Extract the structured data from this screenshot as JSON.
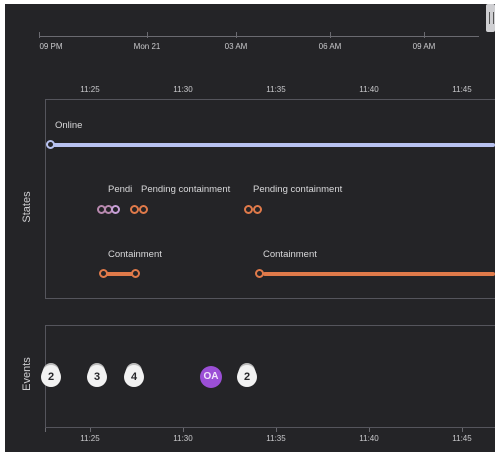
{
  "overview_axis": {
    "labels": [
      "09 PM",
      "Mon 21",
      "03 AM",
      "06 AM",
      "09 AM"
    ]
  },
  "detail_axis": {
    "labels": [
      "11:25",
      "11:30",
      "11:35",
      "11:40",
      "11:45"
    ]
  },
  "states_panel": {
    "title": "States",
    "online_label": "Online",
    "pending_labels": [
      "Pendi",
      "Pending containment",
      "Pending containment"
    ],
    "containment_labels": [
      "Containment",
      "Containment"
    ]
  },
  "events_panel": {
    "title": "Events",
    "events": [
      "2",
      "3",
      "4",
      "OA",
      "2"
    ]
  },
  "colors": {
    "background": "#242427",
    "online": "#b8c2f0",
    "containment": "#e07a4a",
    "pending_a": "#b98ab0",
    "oa_event": "#9b4fd6"
  }
}
